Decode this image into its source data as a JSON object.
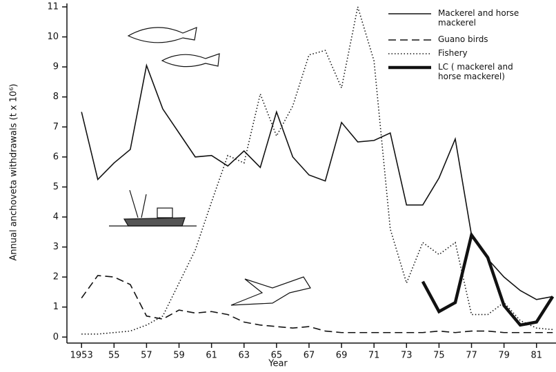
{
  "chart_data": {
    "type": "line",
    "x_label": "Year",
    "y_label": "Annual anchoveta withdrawals (t x 10⁶)",
    "x": [
      1953,
      1954,
      1955,
      1956,
      1957,
      1958,
      1959,
      1960,
      1961,
      1962,
      1963,
      1964,
      1965,
      1966,
      1967,
      1968,
      1969,
      1970,
      1971,
      1972,
      1973,
      1974,
      1975,
      1976,
      1977,
      1978,
      1979,
      1980,
      1981,
      1982
    ],
    "xlim": [
      1952.1,
      1982.2
    ],
    "ylim": [
      -0.2,
      11
    ],
    "xticks": [
      1953,
      {
        "value": 1955,
        "label": "55"
      },
      {
        "value": 1957,
        "label": "57"
      },
      {
        "value": 1959,
        "label": "59"
      },
      {
        "value": 1961,
        "label": "61"
      },
      {
        "value": 1963,
        "label": "63"
      },
      {
        "value": 1965,
        "label": "65"
      },
      {
        "value": 1967,
        "label": "67"
      },
      {
        "value": 1969,
        "label": "69"
      },
      {
        "value": 1971,
        "label": "71"
      },
      {
        "value": 1973,
        "label": "73"
      },
      {
        "value": 1975,
        "label": "75"
      },
      {
        "value": 1977,
        "label": "77"
      },
      {
        "value": 1979,
        "label": "79"
      },
      {
        "value": 1981,
        "label": "81"
      }
    ],
    "yticks": [
      0,
      1,
      2,
      3,
      4,
      5,
      6,
      7,
      8,
      9,
      10,
      11
    ],
    "grid": false,
    "legend": "upper right",
    "series": [
      {
        "name": "Mackerel and horse mackerel",
        "color": "#111111",
        "style": "solid",
        "linewidth": 1.6,
        "values": [
          7.5,
          5.25,
          5.8,
          6.25,
          9.05,
          7.6,
          6.8,
          6.0,
          6.05,
          5.7,
          6.2,
          5.65,
          7.5,
          6.0,
          5.4,
          5.2,
          7.15,
          6.5,
          6.55,
          6.8,
          4.4,
          4.4,
          5.3,
          6.6,
          3.4,
          2.6,
          2.0,
          1.55,
          1.25,
          1.35
        ]
      },
      {
        "name": "Guano birds",
        "color": "#111111",
        "style": "dashed",
        "linewidth": 1.6,
        "values": [
          1.3,
          2.05,
          2.0,
          1.75,
          0.7,
          0.6,
          0.9,
          0.8,
          0.85,
          0.75,
          0.5,
          0.4,
          0.35,
          0.3,
          0.35,
          0.2,
          0.15,
          0.15,
          0.15,
          0.15,
          0.15,
          0.15,
          0.2,
          0.15,
          0.2,
          0.2,
          0.15,
          0.15,
          0.15,
          0.15
        ]
      },
      {
        "name": "Fishery",
        "color": "#111111",
        "style": "dotted",
        "linewidth": 1.6,
        "values": [
          0.1,
          0.1,
          0.15,
          0.2,
          0.4,
          0.7,
          1.8,
          2.9,
          4.5,
          6.05,
          5.8,
          8.1,
          6.7,
          7.7,
          9.4,
          9.55,
          8.3,
          11.0,
          9.2,
          3.6,
          1.8,
          3.15,
          2.75,
          3.15,
          0.75,
          0.75,
          1.15,
          0.55,
          0.3,
          0.25
        ]
      },
      {
        "name": "LC ( mackerel and horse mackerel)",
        "color": "#111111",
        "style": "solid",
        "linewidth": 4.5,
        "values": [
          null,
          null,
          null,
          null,
          null,
          null,
          null,
          null,
          null,
          null,
          null,
          null,
          null,
          null,
          null,
          null,
          null,
          null,
          null,
          null,
          null,
          1.85,
          0.85,
          1.15,
          3.4,
          2.65,
          1.05,
          0.4,
          0.5,
          1.35
        ]
      }
    ]
  }
}
